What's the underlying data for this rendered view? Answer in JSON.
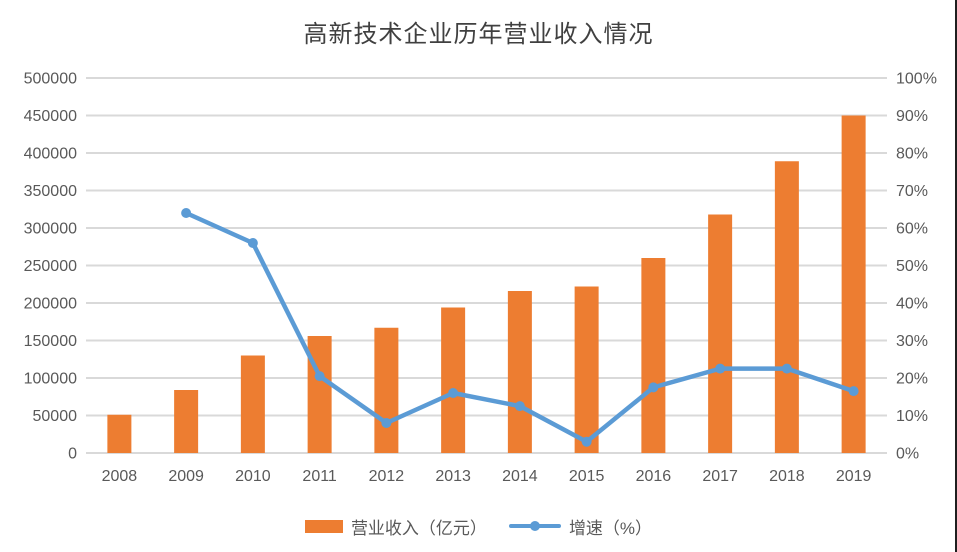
{
  "chart_data": {
    "type": "bar",
    "subtype": "combo-bar-line",
    "title": "高新技术企业历年营业收入情况",
    "categories": [
      "2008",
      "2009",
      "2010",
      "2011",
      "2012",
      "2013",
      "2014",
      "2015",
      "2016",
      "2017",
      "2018",
      "2019"
    ],
    "series": [
      {
        "name": "营业收入（亿元）",
        "type": "bar",
        "axis": "left",
        "color": "#ED7D31",
        "values": [
          51000,
          84000,
          130000,
          156000,
          167000,
          194000,
          216000,
          222000,
          260000,
          318000,
          389000,
          450000
        ]
      },
      {
        "name": "增速（%）",
        "type": "line",
        "axis": "right",
        "color": "#5B9BD5",
        "values": [
          null,
          64,
          56,
          20.5,
          8,
          16,
          12.5,
          3,
          17.5,
          22.5,
          22.5,
          16.5
        ]
      }
    ],
    "left_axis": {
      "min": 0,
      "max": 500000,
      "step": 50000,
      "tick_labels": [
        "0",
        "50000",
        "100000",
        "150000",
        "200000",
        "250000",
        "300000",
        "350000",
        "400000",
        "450000",
        "500000"
      ]
    },
    "right_axis": {
      "min": 0,
      "max": 100,
      "step": 10,
      "tick_labels": [
        "0%",
        "10%",
        "20%",
        "30%",
        "40%",
        "50%",
        "60%",
        "70%",
        "80%",
        "90%",
        "100%"
      ]
    },
    "grid": true,
    "gridline_color": "#d9d9d9",
    "legend_position": "bottom"
  }
}
